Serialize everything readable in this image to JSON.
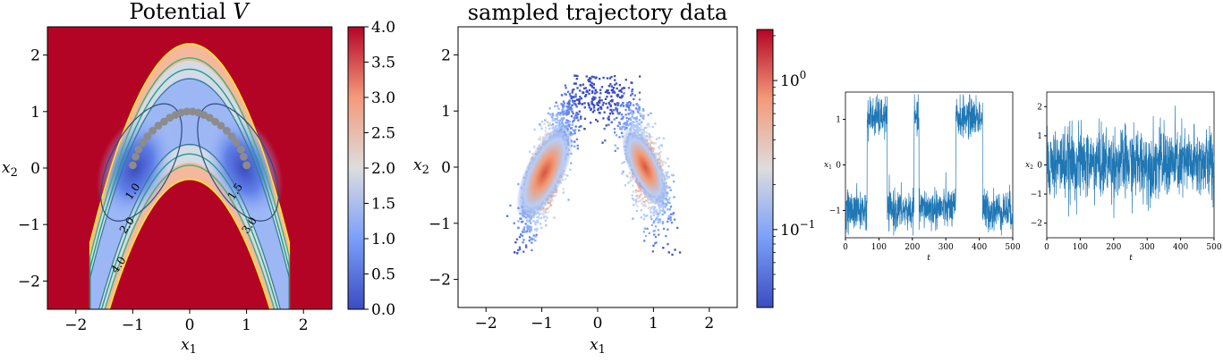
{
  "chart_data": [
    {
      "type": "heatmap",
      "title": "Potential V",
      "title_main": "Potential",
      "title_var": "V",
      "xlabel": "x",
      "xlabel_sub": "1",
      "ylabel": "x",
      "ylabel_sub": "2",
      "xlim": [
        -2.5,
        2.5
      ],
      "ylim": [
        -2.5,
        2.5
      ],
      "xticks": [
        "−2",
        "−1",
        "0",
        "1",
        "2"
      ],
      "xtick_values": [
        -2,
        -1,
        0,
        1,
        2
      ],
      "yticks": [
        "−2",
        "−1",
        "0",
        "1",
        "2"
      ],
      "ytick_values": [
        -2,
        -1,
        0,
        1,
        2
      ],
      "colormap": "coolwarm",
      "colorbar": {
        "min": 0.0,
        "max": 4.0,
        "ticks": [
          "0.0",
          "0.5",
          "1.0",
          "1.5",
          "2.0",
          "2.5",
          "3.0",
          "3.5",
          "4.0"
        ],
        "tick_values": [
          0,
          0.5,
          1,
          1.5,
          2,
          2.5,
          3,
          3.5,
          4
        ]
      },
      "contour_labels": [
        {
          "text": "1.0",
          "x": -0.95,
          "y": -0.45
        },
        {
          "text": "2.0",
          "x": -1.05,
          "y": -1.05
        },
        {
          "text": "4.0",
          "x": -1.2,
          "y": -1.75
        },
        {
          "text": "1.5",
          "x": 0.85,
          "y": -0.45
        },
        {
          "text": "3.0",
          "x": 1.1,
          "y": -1.05
        }
      ],
      "contour_levels": [
        1.0,
        1.5,
        2.0,
        3.0,
        4.0
      ],
      "contour_colors": {
        "1.0": "#2f4b7c",
        "1.5": "#2b7f8f",
        "2.0": "#1f9e89",
        "3.0": "#35b779",
        "4.0": "#fde725"
      },
      "path_points": {
        "x": [
          -1.0,
          -0.95,
          -0.9,
          -0.82,
          -0.74,
          -0.65,
          -0.55,
          -0.45,
          -0.35,
          -0.25,
          -0.15,
          -0.05,
          0.05,
          0.15,
          0.25,
          0.35,
          0.45,
          0.55,
          0.65,
          0.74,
          0.82,
          0.9,
          0.95,
          1.0
        ],
        "y": [
          0.05,
          0.2,
          0.33,
          0.45,
          0.56,
          0.66,
          0.75,
          0.82,
          0.89,
          0.94,
          0.98,
          1.0,
          1.0,
          0.98,
          0.94,
          0.89,
          0.82,
          0.75,
          0.66,
          0.56,
          0.45,
          0.33,
          0.2,
          0.05
        ],
        "color": "#8c8c8c"
      }
    },
    {
      "type": "heatmap",
      "title": "sampled trajectory data",
      "xlabel": "x",
      "xlabel_sub": "1",
      "ylabel": "x",
      "ylabel_sub": "2",
      "xlim": [
        -2.5,
        2.5
      ],
      "ylim": [
        -2.5,
        2.5
      ],
      "xticks": [
        "−2",
        "−1",
        "0",
        "1",
        "2"
      ],
      "xtick_values": [
        -2,
        -1,
        0,
        1,
        2
      ],
      "yticks": [
        "−2",
        "−1",
        "0",
        "1",
        "2"
      ],
      "ytick_values": [
        -2,
        -1,
        0,
        1,
        2
      ],
      "colormap": "coolwarm",
      "colorbar": {
        "scale": "log",
        "min": 0.03,
        "max": 2.2,
        "ticks": [
          "10",
          "10"
        ],
        "tick_sup": [
          "0",
          "−1"
        ],
        "tick_values": [
          1.0,
          0.1
        ]
      }
    },
    {
      "type": "line",
      "xlabel": "t",
      "ylabel": "x",
      "ylabel_sub": "1",
      "xlim": [
        0,
        500
      ],
      "ylim": [
        -1.6,
        1.6
      ],
      "xticks": [
        "0",
        "100",
        "200",
        "300",
        "400",
        "500"
      ],
      "xtick_values": [
        0,
        100,
        200,
        300,
        400,
        500
      ],
      "yticks": [
        "1",
        "0",
        "−1"
      ],
      "ytick_values": [
        1,
        0,
        -1
      ],
      "color": "#1f77b4",
      "segments": [
        {
          "t": [
            0,
            65
          ],
          "level": -1.0
        },
        {
          "t": [
            65,
            125
          ],
          "level": 1.05
        },
        {
          "t": [
            125,
            205
          ],
          "level": -1.0
        },
        {
          "t": [
            205,
            220
          ],
          "level": 1.0
        },
        {
          "t": [
            220,
            330
          ],
          "level": -0.95
        },
        {
          "t": [
            330,
            410
          ],
          "level": 1.05
        },
        {
          "t": [
            410,
            500
          ],
          "level": -1.0
        }
      ]
    },
    {
      "type": "line",
      "xlabel": "t",
      "ylabel": "x",
      "ylabel_sub": "2",
      "xlim": [
        0,
        500
      ],
      "ylim": [
        -2.5,
        2.5
      ],
      "xticks": [
        "0",
        "100",
        "200",
        "300",
        "400",
        "500"
      ],
      "xtick_values": [
        0,
        100,
        200,
        300,
        400,
        500
      ],
      "yticks": [
        "2",
        "1",
        "0",
        "−1",
        "−2"
      ],
      "ytick_values": [
        2,
        1,
        0,
        -1,
        -2
      ],
      "color": "#1f77b4",
      "mean": 0.05,
      "spread": 0.6
    }
  ]
}
